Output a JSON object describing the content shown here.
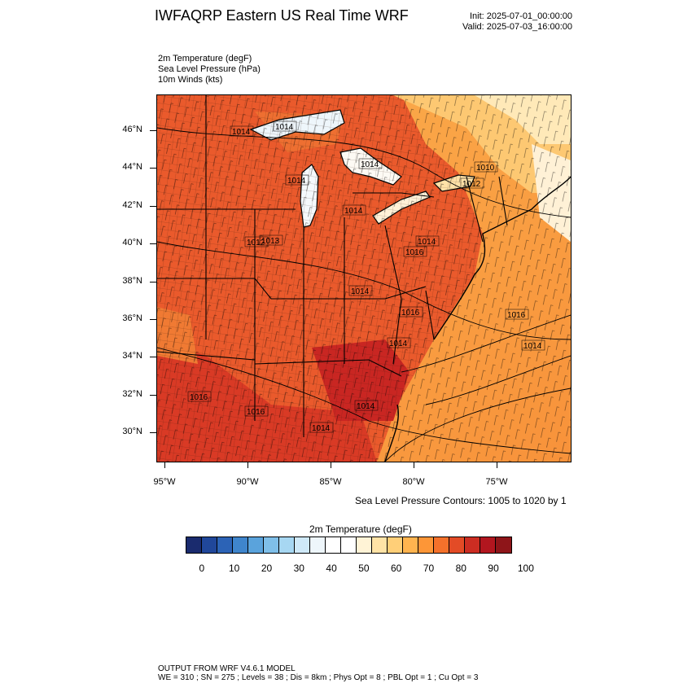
{
  "header": {
    "title": "IWFAQRP Eastern US Real Time WRF",
    "init": "Init: 2025-07-01_00:00:00",
    "valid": "Valid: 2025-07-03_16:00:00"
  },
  "fields": [
    "2m Temperature   (degF)",
    "Sea Level Pressure   (hPa)",
    "10m Winds   (kts)"
  ],
  "map": {
    "lat_labels": [
      "46°N",
      "44°N",
      "42°N",
      "40°N",
      "38°N",
      "36°N",
      "34°N",
      "32°N",
      "30°N"
    ],
    "lon_labels": [
      "95°W",
      "90°W",
      "85°W",
      "80°W",
      "75°W"
    ],
    "isobar_labels": [
      "1014",
      "1014",
      "1014",
      "1014",
      "1012",
      "1014",
      "1014",
      "1012",
      "1016",
      "1014",
      "1016",
      "1014",
      "1016",
      "1014",
      "1014",
      "1016",
      "1016",
      "1014",
      "1013",
      "1010"
    ],
    "contour_note": "Sea Level Pressure Contours: 1005 to 1020 by 1"
  },
  "colorbar": {
    "title": "2m Temperature  (degF)",
    "labels": [
      "0",
      "10",
      "20",
      "30",
      "40",
      "50",
      "60",
      "70",
      "80",
      "90",
      "100"
    ],
    "colors": [
      "#1a2b6e",
      "#20479a",
      "#2c63b6",
      "#3f85cc",
      "#5aa3dc",
      "#7fbfe9",
      "#a7d7f2",
      "#cfe9f8",
      "#eef6fb",
      "#ffffff",
      "#ffffff",
      "#fff3d6",
      "#ffe3a6",
      "#ffcf78",
      "#ffb44f",
      "#fd9637",
      "#f4712b",
      "#e34b26",
      "#cc2d22",
      "#b2161f",
      "#8e1519"
    ]
  },
  "footer": {
    "line1": "OUTPUT FROM WRF V4.6.1 MODEL",
    "line2": "WE = 310 ; SN = 275 ; Levels = 38 ; Dis = 8km ; Phys Opt = 8 ; PBL Opt = 1 ; Cu Opt = 3"
  }
}
